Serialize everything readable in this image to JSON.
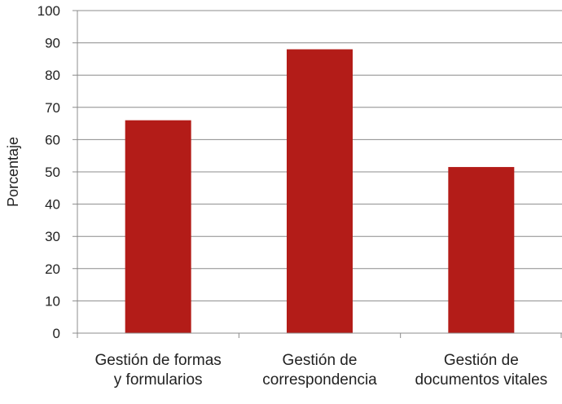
{
  "chart_data": {
    "type": "bar",
    "title": "",
    "xlabel": "",
    "ylabel": "Porcentaje",
    "ylim": [
      0,
      100
    ],
    "yticks": [
      0,
      10,
      20,
      30,
      40,
      50,
      60,
      70,
      80,
      90,
      100
    ],
    "grid": true,
    "categories": [
      [
        "Gestión de formas",
        "y formularios"
      ],
      [
        "Gestión de",
        "correspondencia"
      ],
      [
        "Gestión de",
        "documentos vitales"
      ]
    ],
    "values": [
      66,
      88,
      51.5
    ],
    "colors": {
      "bar": "#b31c18",
      "grid": "#8c8c8c",
      "axis": "#8c8c8c"
    }
  }
}
